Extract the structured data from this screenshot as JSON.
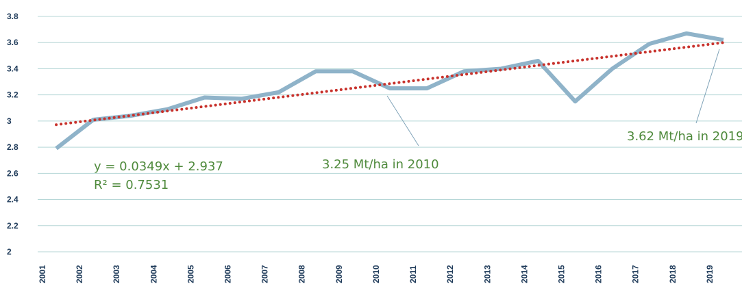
{
  "chart_data": {
    "type": "line",
    "categories": [
      "2001",
      "2002",
      "2003",
      "2004",
      "2005",
      "2006",
      "2007",
      "2008",
      "2009",
      "2010",
      "2011",
      "2012",
      "2013",
      "2014",
      "2015",
      "2016",
      "2017",
      "2018",
      "2019"
    ],
    "series": [
      {
        "color": "#8fb3c9",
        "values": [
          2.79,
          3.01,
          3.04,
          3.09,
          3.18,
          3.17,
          3.22,
          3.38,
          3.38,
          3.25,
          3.25,
          3.38,
          3.4,
          3.46,
          3.15,
          3.4,
          3.59,
          3.67,
          3.62
        ]
      }
    ],
    "ylim": [
      2,
      3.8
    ],
    "yticks": [
      2,
      2.2,
      2.4,
      2.6,
      2.8,
      3,
      3.2,
      3.4,
      3.6,
      3.8
    ],
    "grid": true,
    "trendline": {
      "equation": "y = 0.0349x + 2.937",
      "r2": "R² = 0.7531",
      "slope": 0.0349,
      "intercept": 2.937,
      "color": "#c8322c"
    },
    "annotations": [
      {
        "text": "3.25 Mt/ha in 2010"
      },
      {
        "text": "3.62 Mt/ha in 2019"
      }
    ]
  }
}
